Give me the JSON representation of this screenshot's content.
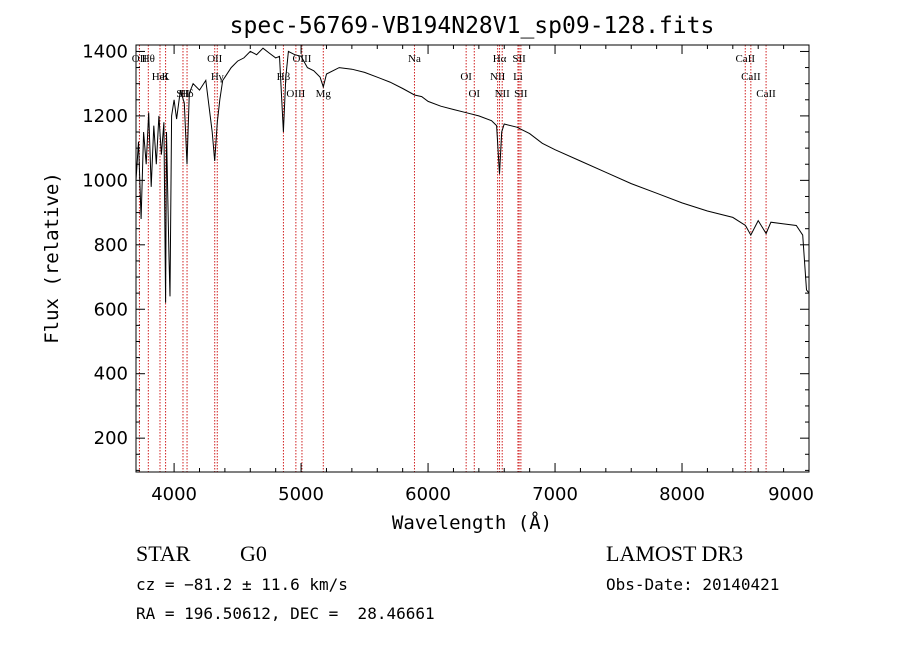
{
  "chart_data": {
    "type": "line",
    "title": "spec-56769-VB194N28V1_sp09-128.fits",
    "xlabel": "Wavelength (Å)",
    "ylabel": "Flux (relative)",
    "xlim": [
      3700,
      9000
    ],
    "ylim": [
      95,
      1420
    ],
    "xticks": [
      4000,
      5000,
      6000,
      7000,
      8000,
      9000
    ],
    "xtick_labels": [
      "4000",
      "5000",
      "6000",
      "7000",
      "8000",
      "9000"
    ],
    "yticks": [
      200,
      400,
      600,
      800,
      1000,
      1200,
      1400
    ],
    "ytick_labels": [
      "200",
      "400",
      "600",
      "800",
      "1000",
      "1200",
      "1400"
    ],
    "series": [
      {
        "name": "spectrum",
        "x": [
          3700,
          3720,
          3740,
          3760,
          3780,
          3800,
          3820,
          3840,
          3860,
          3880,
          3900,
          3920,
          3933,
          3940,
          3960,
          3968,
          3980,
          4000,
          4020,
          4050,
          4080,
          4102,
          4120,
          4150,
          4200,
          4250,
          4300,
          4320,
          4340,
          4360,
          4383,
          4400,
          4450,
          4500,
          4550,
          4600,
          4650,
          4700,
          4750,
          4800,
          4830,
          4861,
          4880,
          4900,
          4950,
          5000,
          5050,
          5100,
          5150,
          5175,
          5200,
          5300,
          5400,
          5500,
          5600,
          5700,
          5800,
          5893,
          5950,
          6000,
          6100,
          6200,
          6300,
          6400,
          6500,
          6540,
          6563,
          6580,
          6600,
          6700,
          6800,
          6900,
          7000,
          7200,
          7400,
          7600,
          7800,
          8000,
          8200,
          8400,
          8500,
          8542,
          8600,
          8662,
          8700,
          8800,
          8900,
          8950,
          8980,
          9000
        ],
        "values": [
          1000,
          1120,
          880,
          1150,
          1050,
          1210,
          980,
          1170,
          1050,
          1200,
          1080,
          1180,
          620,
          1150,
          760,
          640,
          1200,
          1250,
          1190,
          1280,
          1240,
          1050,
          1270,
          1300,
          1280,
          1310,
          1150,
          1060,
          1180,
          1250,
          1310,
          1320,
          1350,
          1370,
          1380,
          1400,
          1390,
          1410,
          1395,
          1380,
          1385,
          1150,
          1320,
          1400,
          1390,
          1385,
          1350,
          1340,
          1320,
          1290,
          1330,
          1350,
          1345,
          1335,
          1320,
          1305,
          1285,
          1265,
          1260,
          1245,
          1230,
          1220,
          1210,
          1200,
          1185,
          1170,
          1020,
          1150,
          1175,
          1165,
          1145,
          1115,
          1095,
          1060,
          1025,
          990,
          960,
          930,
          905,
          885,
          860,
          830,
          875,
          835,
          870,
          865,
          860,
          830,
          660,
          650
        ]
      }
    ],
    "line_markers": [
      {
        "label": "Hθ",
        "x": 3797,
        "color": "#d02020"
      },
      {
        "label": "K",
        "x": 3933,
        "color": "#d02020"
      },
      {
        "label": "Hδ",
        "x": 4102,
        "color": "#d02020"
      },
      {
        "label": "OII",
        "x": 3727,
        "color": "#d02020"
      },
      {
        "label": "HeI",
        "x": 3889,
        "color": "#d02020"
      },
      {
        "label": "SII",
        "x": 4070,
        "color": "#d02020"
      },
      {
        "label": "OII",
        "x": 4320,
        "color": "#d02020"
      },
      {
        "label": "Hγ",
        "x": 4340,
        "color": "#d02020"
      },
      {
        "label": "OIII",
        "x": 4959,
        "color": "#d02020"
      },
      {
        "label": "OIII",
        "x": 5007,
        "color": "#d02020"
      },
      {
        "label": "Hβ",
        "x": 4861,
        "color": "#d02020"
      },
      {
        "label": "Mg",
        "x": 5175,
        "color": "#d02020"
      },
      {
        "label": "Na",
        "x": 5893,
        "color": "#d02020"
      },
      {
        "label": "OI",
        "x": 6300,
        "color": "#d02020"
      },
      {
        "label": "OI",
        "x": 6364,
        "color": "#d02020"
      },
      {
        "label": "Hα",
        "x": 6563,
        "color": "#d02020"
      },
      {
        "label": "NII",
        "x": 6548,
        "color": "#d02020"
      },
      {
        "label": "NII",
        "x": 6584,
        "color": "#d02020"
      },
      {
        "label": "SII",
        "x": 6717,
        "color": "#d02020"
      },
      {
        "label": "Li",
        "x": 6708,
        "color": "#d02020"
      },
      {
        "label": "SII",
        "x": 6731,
        "color": "#d02020"
      },
      {
        "label": "CaII",
        "x": 8498,
        "color": "#d02020"
      },
      {
        "label": "CaII",
        "x": 8542,
        "color": "#d02020"
      },
      {
        "label": "CaII",
        "x": 8662,
        "color": "#d02020"
      }
    ],
    "line_color": "#000000",
    "marker_color": "#d02020"
  },
  "info": {
    "class": "STAR",
    "subclass": "G0",
    "survey": "LAMOST DR3",
    "cz": "cz = −81.2 ± 11.6 km/s",
    "obs_date": "Obs-Date: 20140421",
    "coords": "RA = 196.50612, DEC =  28.46661"
  }
}
